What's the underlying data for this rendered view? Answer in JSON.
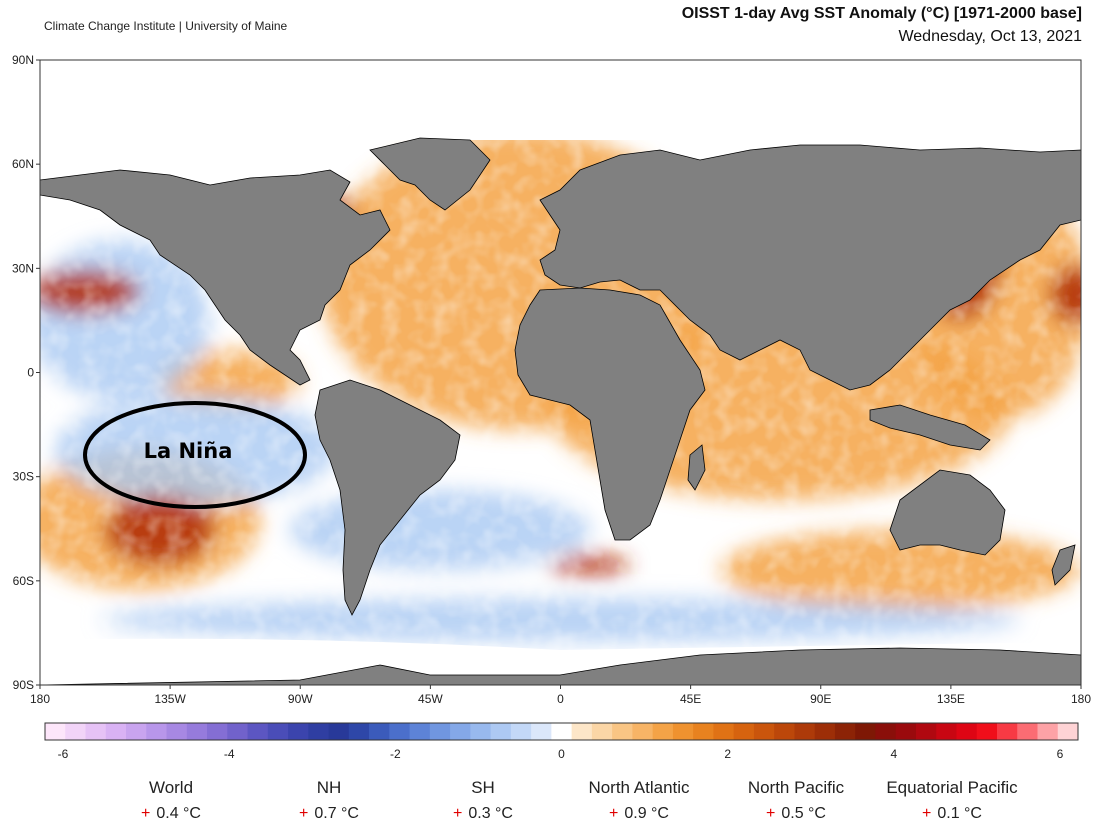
{
  "header": {
    "credit": "Climate Change Institute | University of Maine",
    "title": "OISST 1-day Avg SST Anomaly (°C) [1971-2000 base]",
    "date": "Wednesday, Oct 13, 2021"
  },
  "map": {
    "annotation": "La Niña",
    "lat_ticks": [
      "90N",
      "60N",
      "30N",
      "0",
      "30S",
      "60S",
      "90S"
    ],
    "lon_ticks": [
      "180",
      "135W",
      "90W",
      "45W",
      "0",
      "45E",
      "90E",
      "135E",
      "180"
    ],
    "colors": {
      "land": "#808080",
      "ocean_neutral": "#ffffff",
      "ice": "#ffffff",
      "warm": "#f4a347",
      "hot": "#b3300c",
      "cool": "#a9c9f2",
      "cold": "#4a6fd1",
      "annotation_ring": "#000000"
    }
  },
  "colorbar": {
    "tick_labels": [
      "-6",
      "-4",
      "-2",
      "0",
      "2",
      "4",
      "6"
    ],
    "min": -6,
    "max": 6,
    "colors": [
      "#fde6fa",
      "#f2d4f8",
      "#e6c2f6",
      "#d9b2f4",
      "#c9a4ef",
      "#b896ea",
      "#a788e3",
      "#967bdc",
      "#846ed4",
      "#7162cb",
      "#5c56c2",
      "#4a4db8",
      "#3b44ad",
      "#2f3ea2",
      "#283999",
      "#2e47a8",
      "#3b5bbb",
      "#4b6fcb",
      "#5d83d7",
      "#7096e0",
      "#84a8e8",
      "#98b9ee",
      "#adc9f3",
      "#c3d8f7",
      "#dbe7fa",
      "#ffffff",
      "#fde6c8",
      "#fbd6a6",
      "#f9c584",
      "#f7b466",
      "#f4a347",
      "#ef922f",
      "#e8821f",
      "#e07215",
      "#d6630f",
      "#ca550c",
      "#bc470a",
      "#ad3a09",
      "#9d2e07",
      "#8c2306",
      "#7e1805",
      "#8a0f0a",
      "#9a0a0d",
      "#b00810",
      "#c80612",
      "#de0514",
      "#f00e1a",
      "#f73a44",
      "#fb6c73",
      "#fda2a6",
      "#fed3d5"
    ]
  },
  "regions": [
    {
      "name": "World",
      "value": "0.4 °C"
    },
    {
      "name": "NH",
      "value": "0.7 °C"
    },
    {
      "name": "SH",
      "value": "0.3 °C"
    },
    {
      "name": "North Atlantic",
      "value": "0.9 °C"
    },
    {
      "name": "North Pacific",
      "value": "0.5 °C"
    },
    {
      "name": "Equatorial Pacific",
      "value": "0.1 °C"
    }
  ]
}
